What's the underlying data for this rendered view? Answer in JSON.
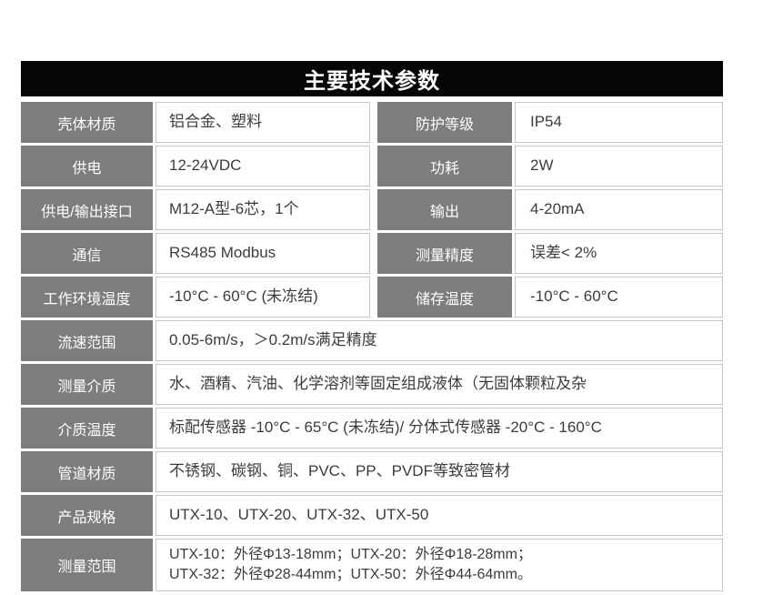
{
  "title": "主要技术参数",
  "colors": {
    "title_bar_bg": "#060606",
    "title_text": "#ffffff",
    "label_cell_bg": "#7d7d7d",
    "label_text": "#ffffff",
    "value_text": "#3c3c3c",
    "cell_border": "#c6c6c6"
  },
  "table": {
    "split_rows": [
      {
        "left_label": "壳体材质",
        "left_value": "铝合金、塑料",
        "right_label": "防护等级",
        "right_value": "IP54"
      },
      {
        "left_label": "供电",
        "left_value": "12-24VDC",
        "right_label": "功耗",
        "right_value": "2W"
      },
      {
        "left_label": "供电/输出接口",
        "left_value": "M12-A型-6芯，1个",
        "right_label": "输出",
        "right_value": "4-20mA"
      },
      {
        "left_label": "通信",
        "left_value": "RS485 Modbus",
        "right_label": "测量精度",
        "right_value": "误差< 2%"
      },
      {
        "left_label": "工作环境温度",
        "left_value": "-10°C - 60°C (未冻结)",
        "right_label": "储存温度",
        "right_value": "-10°C - 60°C"
      }
    ],
    "full_rows": [
      {
        "label": "流速范围",
        "value": "0.05-6m/s，＞0.2m/s满足精度"
      },
      {
        "label": "测量介质",
        "value": "水、酒精、汽油、化学溶剂等固定组成液体（无固体颗粒及杂"
      },
      {
        "label": "介质温度",
        "value": "标配传感器 -10°C - 65°C (未冻结)/ 分体式传感器 -20°C - 160°C"
      },
      {
        "label": "管道材质",
        "value": "不锈钢、碳钢、铜、PVC、PP、PVDF等致密管材"
      },
      {
        "label": "产品规格",
        "value": "UTX-10、UTX-20、UTX-32、UTX-50"
      },
      {
        "label": "测量范围",
        "value": "UTX-10：外径Φ13-18mm；UTX-20：外径Φ18-28mm；\nUTX-32：外径Φ28-44mm；UTX-50：外径Φ44-64mm。"
      }
    ]
  }
}
